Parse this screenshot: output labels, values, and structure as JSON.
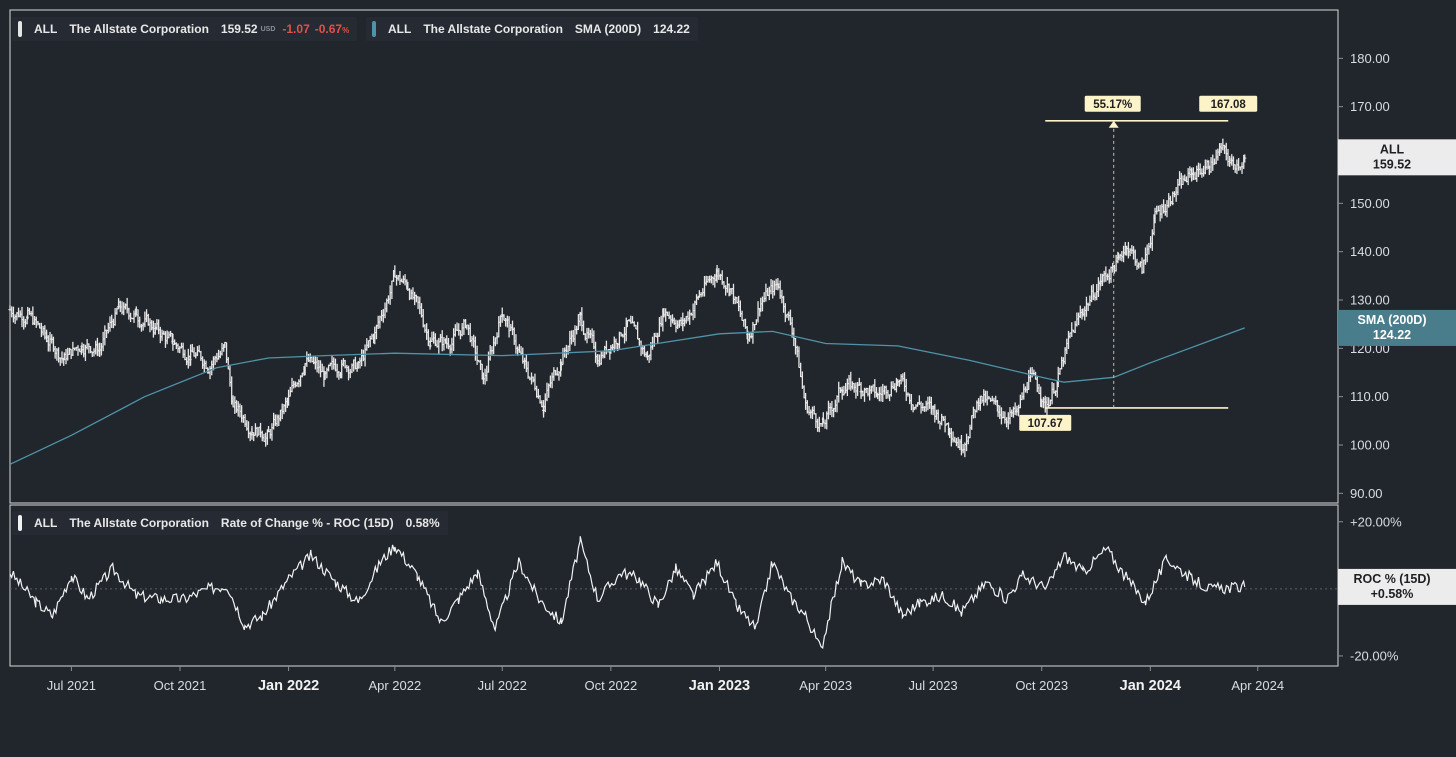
{
  "colors": {
    "background": "#21262d",
    "panel_border": "#d9d9d9",
    "price_bars": "#e6e6e6",
    "sma_line": "#4f93a8",
    "roc_line": "#f2f2f2",
    "annotation_fill": "#fdf3c8",
    "negative": "#e0514a"
  },
  "legends": {
    "price": {
      "ticker": "ALL",
      "name": "The Allstate Corporation",
      "price": "159.52",
      "currency": "USD",
      "change": "-1.07",
      "change_pct": "-0.67",
      "pct_sign": "%"
    },
    "sma": {
      "ticker": "ALL",
      "name": "The Allstate Corporation",
      "indicator": "SMA (200D)",
      "value": "124.22"
    },
    "roc": {
      "ticker": "ALL",
      "name": "The Allstate Corporation",
      "indicator": "Rate of Change % - ROC (15D)",
      "value": "0.58%"
    }
  },
  "chart_data": [
    {
      "type": "ohlc",
      "name": "ALL",
      "x_range": [
        "2021-05-10",
        "2024-06-08"
      ],
      "x_tick_labels": [
        {
          "date": "2021-07-01",
          "label": "Jul 2021",
          "major": false
        },
        {
          "date": "2021-10-01",
          "label": "Oct 2021",
          "major": false
        },
        {
          "date": "2022-01-01",
          "label": "Jan 2022",
          "major": true
        },
        {
          "date": "2022-04-01",
          "label": "Apr 2022",
          "major": false
        },
        {
          "date": "2022-07-01",
          "label": "Jul 2022",
          "major": false
        },
        {
          "date": "2022-10-01",
          "label": "Oct 2022",
          "major": false
        },
        {
          "date": "2023-01-01",
          "label": "Jan 2023",
          "major": true
        },
        {
          "date": "2023-04-01",
          "label": "Apr 2023",
          "major": false
        },
        {
          "date": "2023-07-01",
          "label": "Jul 2023",
          "major": false
        },
        {
          "date": "2023-10-01",
          "label": "Oct 2023",
          "major": false
        },
        {
          "date": "2024-01-01",
          "label": "Jan 2024",
          "major": true
        },
        {
          "date": "2024-04-01",
          "label": "Apr 2024",
          "major": false
        }
      ],
      "ylim": [
        88,
        190
      ],
      "y_ticks": [
        "90.00",
        "100.00",
        "110.00",
        "120.00",
        "130.00",
        "140.00",
        "150.00",
        "160.00",
        "170.00",
        "180.00"
      ],
      "price_path": [
        [
          "2021-05-10",
          128
        ],
        [
          "2021-05-25",
          127
        ],
        [
          "2021-06-10",
          122
        ],
        [
          "2021-06-25",
          118
        ],
        [
          "2021-07-10",
          121
        ],
        [
          "2021-07-25",
          120
        ],
        [
          "2021-08-10",
          128
        ],
        [
          "2021-08-25",
          127
        ],
        [
          "2021-09-10",
          124
        ],
        [
          "2021-09-25",
          121
        ],
        [
          "2021-10-10",
          119
        ],
        [
          "2021-10-25",
          117
        ],
        [
          "2021-11-08",
          120
        ],
        [
          "2021-11-15",
          108
        ],
        [
          "2021-12-01",
          104
        ],
        [
          "2021-12-15",
          102
        ],
        [
          "2022-01-01",
          109
        ],
        [
          "2022-01-15",
          118
        ],
        [
          "2022-02-01",
          114
        ],
        [
          "2022-02-15",
          117
        ],
        [
          "2022-03-01",
          116
        ],
        [
          "2022-03-15",
          123
        ],
        [
          "2022-04-01",
          135
        ],
        [
          "2022-04-12",
          133
        ],
        [
          "2022-05-01",
          122
        ],
        [
          "2022-05-15",
          121
        ],
        [
          "2022-06-01",
          125
        ],
        [
          "2022-06-15",
          113
        ],
        [
          "2022-07-01",
          128
        ],
        [
          "2022-07-20",
          116
        ],
        [
          "2022-08-05",
          109
        ],
        [
          "2022-08-20",
          118
        ],
        [
          "2022-09-05",
          126
        ],
        [
          "2022-09-20",
          118
        ],
        [
          "2022-10-01",
          121
        ],
        [
          "2022-10-15",
          125
        ],
        [
          "2022-11-01",
          118
        ],
        [
          "2022-11-15",
          128
        ],
        [
          "2022-12-01",
          125
        ],
        [
          "2022-12-15",
          131
        ],
        [
          "2022-12-30",
          136
        ],
        [
          "2023-01-10",
          133
        ],
        [
          "2023-01-25",
          122
        ],
        [
          "2023-02-05",
          130
        ],
        [
          "2023-02-20",
          133
        ],
        [
          "2023-03-05",
          123
        ],
        [
          "2023-03-15",
          108
        ],
        [
          "2023-03-30",
          104
        ],
        [
          "2023-04-15",
          112
        ],
        [
          "2023-05-01",
          112
        ],
        [
          "2023-05-15",
          110
        ],
        [
          "2023-06-01",
          114
        ],
        [
          "2023-06-15",
          109
        ],
        [
          "2023-07-01",
          107
        ],
        [
          "2023-07-15",
          104
        ],
        [
          "2023-07-25",
          100
        ],
        [
          "2023-08-10",
          110
        ],
        [
          "2023-08-25",
          107
        ],
        [
          "2023-09-10",
          106
        ],
        [
          "2023-09-20",
          114
        ],
        [
          "2023-10-01",
          111
        ],
        [
          "2023-10-04",
          108
        ],
        [
          "2023-10-15",
          114
        ],
        [
          "2023-10-25",
          122
        ],
        [
          "2023-11-05",
          128
        ],
        [
          "2023-11-20",
          134
        ],
        [
          "2023-12-05",
          138
        ],
        [
          "2023-12-12",
          142
        ],
        [
          "2023-12-25",
          136
        ],
        [
          "2024-01-05",
          147
        ],
        [
          "2024-01-20",
          152
        ],
        [
          "2024-02-05",
          156
        ],
        [
          "2024-02-20",
          158
        ],
        [
          "2024-03-01",
          161
        ],
        [
          "2024-03-10",
          158
        ],
        [
          "2024-03-21",
          159.52
        ]
      ],
      "sma": {
        "name": "SMA (200D)",
        "path": [
          [
            "2021-05-10",
            96
          ],
          [
            "2021-07-01",
            102
          ],
          [
            "2021-09-01",
            110
          ],
          [
            "2021-11-01",
            116
          ],
          [
            "2021-12-15",
            118
          ],
          [
            "2022-02-01",
            118.5
          ],
          [
            "2022-04-01",
            119
          ],
          [
            "2022-07-01",
            118.5
          ],
          [
            "2022-10-01",
            119.5
          ],
          [
            "2023-01-01",
            123
          ],
          [
            "2023-02-15",
            123.5
          ],
          [
            "2023-04-01",
            121
          ],
          [
            "2023-06-01",
            120.5
          ],
          [
            "2023-08-01",
            117.5
          ],
          [
            "2023-10-01",
            114
          ],
          [
            "2023-10-20",
            113
          ],
          [
            "2023-12-01",
            114
          ],
          [
            "2024-01-01",
            117
          ],
          [
            "2024-03-21",
            124.22
          ]
        ]
      },
      "annotations": {
        "low": {
          "label": "107.67",
          "date": "2023-10-04",
          "value": 107.67
        },
        "high": {
          "label": "167.08",
          "date": "2024-03-07",
          "value": 167.08
        },
        "change": {
          "label": "55.17%",
          "date": "2023-12-01"
        }
      },
      "last_price_tag": {
        "ticker": "ALL",
        "value": "159.52"
      },
      "sma_tag": {
        "label": "SMA (200D)",
        "value": "124.22"
      }
    },
    {
      "type": "line",
      "name": "ROC % (15D)",
      "ylim": [
        -23,
        25
      ],
      "y_ticks": [
        {
          "value": 20,
          "label": "+20.00%"
        },
        {
          "value": -20,
          "label": "-20.00%"
        }
      ],
      "zero_line": true,
      "roc_path": [
        [
          "2021-05-10",
          5
        ],
        [
          "2021-06-01",
          -4
        ],
        [
          "2021-06-15",
          -8
        ],
        [
          "2021-07-01",
          4
        ],
        [
          "2021-07-15",
          -3
        ],
        [
          "2021-08-05",
          6
        ],
        [
          "2021-08-25",
          -2
        ],
        [
          "2021-09-15",
          -3
        ],
        [
          "2021-10-05",
          -3
        ],
        [
          "2021-10-25",
          0
        ],
        [
          "2021-11-10",
          1
        ],
        [
          "2021-11-25",
          -11
        ],
        [
          "2021-12-10",
          -8
        ],
        [
          "2022-01-01",
          3
        ],
        [
          "2022-01-20",
          10
        ],
        [
          "2022-02-10",
          2
        ],
        [
          "2022-03-01",
          -4
        ],
        [
          "2022-03-20",
          8
        ],
        [
          "2022-04-01",
          13
        ],
        [
          "2022-04-20",
          4
        ],
        [
          "2022-05-10",
          -10
        ],
        [
          "2022-05-25",
          -3
        ],
        [
          "2022-06-10",
          5
        ],
        [
          "2022-06-25",
          -12
        ],
        [
          "2022-07-15",
          8
        ],
        [
          "2022-08-01",
          -3
        ],
        [
          "2022-08-20",
          -10
        ],
        [
          "2022-09-05",
          14
        ],
        [
          "2022-09-20",
          -3
        ],
        [
          "2022-10-10",
          5
        ],
        [
          "2022-10-25",
          3
        ],
        [
          "2022-11-10",
          -5
        ],
        [
          "2022-11-25",
          6
        ],
        [
          "2022-12-10",
          -2
        ],
        [
          "2022-12-30",
          8
        ],
        [
          "2023-01-15",
          -5
        ],
        [
          "2023-02-01",
          -12
        ],
        [
          "2023-02-15",
          8
        ],
        [
          "2023-03-01",
          -2
        ],
        [
          "2023-03-15",
          -8
        ],
        [
          "2023-03-28",
          -18
        ],
        [
          "2023-04-15",
          8
        ],
        [
          "2023-05-01",
          1
        ],
        [
          "2023-05-20",
          3
        ],
        [
          "2023-06-05",
          -8
        ],
        [
          "2023-06-20",
          -4
        ],
        [
          "2023-07-10",
          -2
        ],
        [
          "2023-07-25",
          -7
        ],
        [
          "2023-08-15",
          2
        ],
        [
          "2023-09-01",
          -3
        ],
        [
          "2023-09-15",
          4
        ],
        [
          "2023-10-05",
          0
        ],
        [
          "2023-10-20",
          10
        ],
        [
          "2023-11-05",
          5
        ],
        [
          "2023-11-25",
          12
        ],
        [
          "2023-12-10",
          4
        ],
        [
          "2023-12-28",
          -4
        ],
        [
          "2024-01-15",
          9
        ],
        [
          "2024-02-05",
          3
        ],
        [
          "2024-02-20",
          0
        ],
        [
          "2024-03-21",
          0.58
        ]
      ],
      "last_tag": {
        "label": "ROC % (15D)",
        "value": "+0.58%"
      }
    }
  ]
}
